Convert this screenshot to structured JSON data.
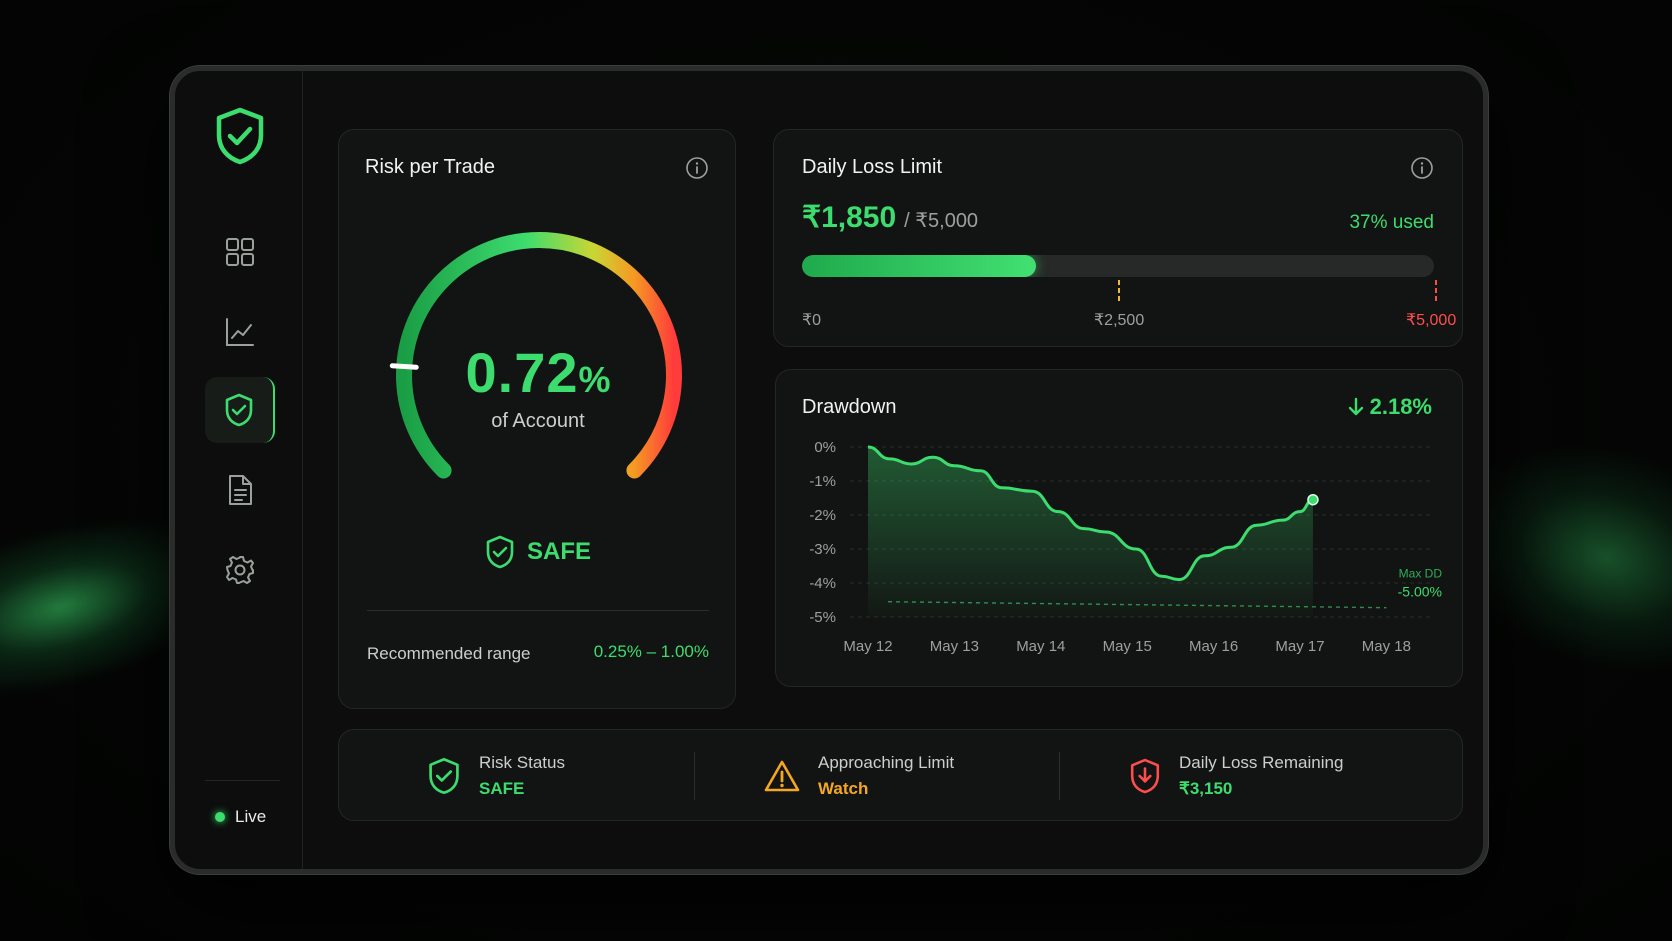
{
  "sidebar": {
    "logo_icon": "shield-check-icon",
    "items": [
      {
        "icon": "dashboard-grid-icon",
        "active": false
      },
      {
        "icon": "chart-line-icon",
        "active": false
      },
      {
        "icon": "shield-check-icon",
        "active": true
      },
      {
        "icon": "document-icon",
        "active": false
      },
      {
        "icon": "settings-gear-icon",
        "active": false
      }
    ],
    "live_label": "Live"
  },
  "risk_per_trade": {
    "title": "Risk per Trade",
    "value": "0.72",
    "unit": "%",
    "subtitle": "of Account",
    "gauge_fraction": 0.18,
    "status": "SAFE",
    "range_label": "Recommended range",
    "range_value": "0.25% – 1.00%"
  },
  "daily_loss_limit": {
    "title": "Daily Loss Limit",
    "used": "₹1,850",
    "total": "/ ₹5,000",
    "percent_label": "37% used",
    "fraction": 0.37,
    "ticks": [
      {
        "label": "₹0",
        "fraction": 0.0,
        "color": "#3ddc6e"
      },
      {
        "label": "₹2,500",
        "fraction": 0.5,
        "color": "#f5b82e"
      },
      {
        "label": "₹5,000",
        "fraction": 1.0,
        "color": "#ff4d4d"
      }
    ]
  },
  "drawdown": {
    "title": "Drawdown",
    "change": "2.18%",
    "max_dd_label": "Max DD",
    "max_dd_value": "-5.00%"
  },
  "chart_data": {
    "type": "area",
    "title": "Drawdown",
    "x": [
      "May 12",
      "May 13",
      "May 14",
      "May 15",
      "May 16",
      "May 17",
      "May 18"
    ],
    "y_ticks": [
      "0%",
      "-1%",
      "-2%",
      "-3%",
      "-4%",
      "-5%"
    ],
    "ylim": [
      -5,
      0
    ],
    "series": [
      {
        "points": [
          [
            0.0,
            0.0
          ],
          [
            0.25,
            -0.35
          ],
          [
            0.5,
            -0.5
          ],
          [
            0.75,
            -0.3
          ],
          [
            1.0,
            -0.55
          ],
          [
            1.3,
            -0.7
          ],
          [
            1.55,
            -1.2
          ],
          [
            1.9,
            -1.3
          ],
          [
            2.2,
            -1.9
          ],
          [
            2.5,
            -2.4
          ],
          [
            2.75,
            -2.5
          ],
          [
            3.1,
            -3.0
          ],
          [
            3.4,
            -3.8
          ],
          [
            3.6,
            -3.9
          ],
          [
            3.9,
            -3.2
          ],
          [
            4.2,
            -2.95
          ],
          [
            4.5,
            -2.3
          ],
          [
            4.8,
            -2.15
          ],
          [
            5.0,
            -1.9
          ],
          [
            5.15,
            -1.55
          ]
        ]
      }
    ],
    "reference_line": -4.55,
    "grid": true
  },
  "status_bar": {
    "items": [
      {
        "icon": "shield-check-icon",
        "label": "Risk Status",
        "value": "SAFE",
        "color": "#3ddc6e"
      },
      {
        "icon": "warning-triangle-icon",
        "label": "Approaching Limit",
        "value": "Watch",
        "color": "#f5a623"
      },
      {
        "icon": "shield-down-icon",
        "label": "Daily Loss Remaining",
        "value": "₹3,150",
        "color": "#3ddc6e"
      }
    ]
  },
  "colors": {
    "accent": "#3ddc6e",
    "warning": "#f5a623",
    "danger": "#ff4d4d"
  }
}
